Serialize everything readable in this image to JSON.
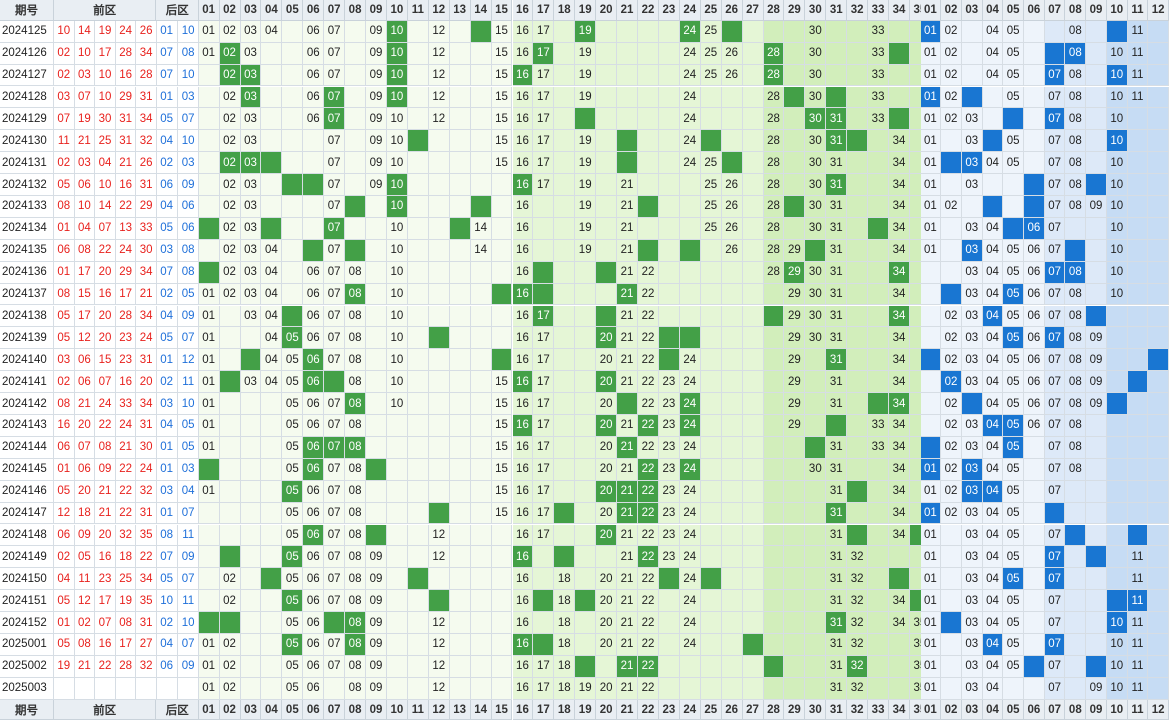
{
  "columns": {
    "period_label": "期号",
    "front_label": "前区",
    "back_label": "后区",
    "front_numbers": [
      "01",
      "02",
      "03",
      "04",
      "05",
      "06",
      "07",
      "08",
      "09",
      "10",
      "11",
      "12",
      "13",
      "14",
      "15",
      "16",
      "17",
      "18",
      "19",
      "20",
      "21",
      "22",
      "23",
      "24",
      "25",
      "26",
      "27",
      "28",
      "29",
      "30",
      "31",
      "32",
      "33",
      "34",
      "35"
    ],
    "back_numbers": [
      "01",
      "02",
      "03",
      "04",
      "05",
      "06",
      "07",
      "08",
      "09",
      "10",
      "11",
      "12"
    ]
  },
  "colors": {
    "front_hit": "#43a047",
    "back_hit": "#1976d2",
    "front_number_text": "#e8211d",
    "back_number_text": "#1e6fd9"
  },
  "rows": [
    {
      "period": "2024125",
      "front": [
        "10",
        "14",
        "19",
        "24",
        "26"
      ],
      "back": [
        "01",
        "10"
      ],
      "front_cells": [
        "01",
        "02",
        "03",
        "04",
        "06",
        "07",
        "09",
        "10",
        "12",
        "15",
        "16",
        "17",
        "19",
        "24",
        "25",
        "30",
        "33"
      ],
      "back_cells": [
        "01",
        "02",
        "04",
        "05",
        "08",
        "11"
      ]
    },
    {
      "period": "2024126",
      "front": [
        "02",
        "10",
        "17",
        "28",
        "34"
      ],
      "back": [
        "07",
        "08"
      ],
      "front_cells": [
        "01",
        "02",
        "03",
        "06",
        "07",
        "09",
        "10",
        "12",
        "15",
        "16",
        "17",
        "19",
        "24",
        "25",
        "26",
        "28",
        "30",
        "33"
      ],
      "back_cells": [
        "01",
        "02",
        "04",
        "05",
        "08",
        "10",
        "11"
      ]
    },
    {
      "period": "2024127",
      "front": [
        "02",
        "03",
        "10",
        "16",
        "28"
      ],
      "back": [
        "07",
        "10"
      ],
      "front_cells": [
        "02",
        "03",
        "06",
        "07",
        "09",
        "10",
        "12",
        "15",
        "16",
        "17",
        "19",
        "24",
        "25",
        "26",
        "28",
        "30",
        "33"
      ],
      "back_cells": [
        "01",
        "02",
        "04",
        "05",
        "07",
        "08",
        "10",
        "11"
      ]
    },
    {
      "period": "2024128",
      "front": [
        "03",
        "07",
        "10",
        "29",
        "31"
      ],
      "back": [
        "01",
        "03"
      ],
      "front_cells": [
        "02",
        "03",
        "06",
        "07",
        "09",
        "10",
        "12",
        "15",
        "16",
        "17",
        "19",
        "24",
        "28",
        "30",
        "33"
      ],
      "back_cells": [
        "01",
        "02",
        "05",
        "07",
        "08",
        "10",
        "11"
      ]
    },
    {
      "period": "2024129",
      "front": [
        "07",
        "19",
        "30",
        "31",
        "34"
      ],
      "back": [
        "05",
        "07"
      ],
      "front_cells": [
        "02",
        "03",
        "06",
        "07",
        "09",
        "10",
        "12",
        "15",
        "16",
        "17",
        "24",
        "28",
        "30",
        "31",
        "33"
      ],
      "back_cells": [
        "01",
        "02",
        "03",
        "07",
        "08",
        "10"
      ]
    },
    {
      "period": "2024130",
      "front": [
        "11",
        "21",
        "25",
        "31",
        "32"
      ],
      "back": [
        "04",
        "10"
      ],
      "front_cells": [
        "02",
        "03",
        "07",
        "09",
        "10",
        "15",
        "16",
        "17",
        "19",
        "24",
        "28",
        "30",
        "31",
        "34"
      ],
      "back_cells": [
        "01",
        "03",
        "05",
        "07",
        "08",
        "10"
      ]
    },
    {
      "period": "2024131",
      "front": [
        "02",
        "03",
        "04",
        "21",
        "26"
      ],
      "back": [
        "02",
        "03"
      ],
      "front_cells": [
        "02",
        "03",
        "07",
        "09",
        "10",
        "15",
        "16",
        "17",
        "19",
        "24",
        "25",
        "28",
        "30",
        "31",
        "34"
      ],
      "back_cells": [
        "01",
        "03",
        "04",
        "05",
        "07",
        "08",
        "10"
      ]
    },
    {
      "period": "2024132",
      "front": [
        "05",
        "06",
        "10",
        "16",
        "31"
      ],
      "back": [
        "06",
        "09"
      ],
      "front_cells": [
        "02",
        "03",
        "07",
        "09",
        "10",
        "16",
        "17",
        "19",
        "21",
        "25",
        "26",
        "28",
        "30",
        "31",
        "34"
      ],
      "back_cells": [
        "01",
        "03",
        "07",
        "08",
        "10"
      ]
    },
    {
      "period": "2024133",
      "front": [
        "08",
        "10",
        "14",
        "22",
        "29"
      ],
      "back": [
        "04",
        "06"
      ],
      "front_cells": [
        "02",
        "03",
        "07",
        "10",
        "16",
        "19",
        "21",
        "25",
        "26",
        "28",
        "30",
        "31",
        "34"
      ],
      "back_cells": [
        "01",
        "02",
        "07",
        "08",
        "09",
        "10"
      ]
    },
    {
      "period": "2024134",
      "front": [
        "01",
        "04",
        "07",
        "13",
        "33"
      ],
      "back": [
        "05",
        "06"
      ],
      "front_cells": [
        "02",
        "03",
        "07",
        "10",
        "14",
        "16",
        "19",
        "21",
        "25",
        "26",
        "28",
        "30",
        "31",
        "34"
      ],
      "back_cells": [
        "01",
        "03",
        "04",
        "06",
        "07",
        "10"
      ]
    },
    {
      "period": "2024135",
      "front": [
        "06",
        "08",
        "22",
        "24",
        "30"
      ],
      "back": [
        "03",
        "08"
      ],
      "front_cells": [
        "02",
        "03",
        "04",
        "07",
        "10",
        "14",
        "16",
        "19",
        "21",
        "26",
        "28",
        "29",
        "31",
        "34"
      ],
      "back_cells": [
        "01",
        "03",
        "04",
        "05",
        "06",
        "07",
        "10"
      ]
    },
    {
      "period": "2024136",
      "front": [
        "01",
        "17",
        "20",
        "29",
        "34"
      ],
      "back": [
        "07",
        "08"
      ],
      "front_cells": [
        "02",
        "03",
        "04",
        "06",
        "07",
        "08",
        "10",
        "16",
        "21",
        "22",
        "28",
        "29",
        "30",
        "31",
        "34"
      ],
      "back_cells": [
        "03",
        "04",
        "05",
        "06",
        "07",
        "08",
        "10"
      ]
    },
    {
      "period": "2024137",
      "front": [
        "08",
        "15",
        "16",
        "17",
        "21"
      ],
      "back": [
        "02",
        "05"
      ],
      "front_cells": [
        "01",
        "02",
        "03",
        "04",
        "06",
        "07",
        "08",
        "10",
        "16",
        "21",
        "22",
        "29",
        "30",
        "31",
        "34"
      ],
      "back_cells": [
        "03",
        "04",
        "05",
        "06",
        "07",
        "08",
        "10"
      ]
    },
    {
      "period": "2024138",
      "front": [
        "05",
        "17",
        "20",
        "28",
        "34"
      ],
      "back": [
        "04",
        "09"
      ],
      "front_cells": [
        "01",
        "03",
        "04",
        "06",
        "07",
        "08",
        "10",
        "16",
        "17",
        "21",
        "22",
        "29",
        "30",
        "31",
        "34"
      ],
      "back_cells": [
        "02",
        "03",
        "04",
        "05",
        "06",
        "07",
        "08"
      ]
    },
    {
      "period": "2024139",
      "front": [
        "05",
        "12",
        "20",
        "23",
        "24"
      ],
      "back": [
        "05",
        "07"
      ],
      "front_cells": [
        "01",
        "04",
        "05",
        "06",
        "07",
        "08",
        "10",
        "16",
        "17",
        "20",
        "21",
        "22",
        "29",
        "30",
        "31",
        "34"
      ],
      "back_cells": [
        "02",
        "03",
        "04",
        "05",
        "06",
        "07",
        "08",
        "09"
      ]
    },
    {
      "period": "2024140",
      "front": [
        "03",
        "06",
        "15",
        "23",
        "31"
      ],
      "back": [
        "01",
        "12"
      ],
      "front_cells": [
        "01",
        "04",
        "05",
        "06",
        "07",
        "08",
        "10",
        "16",
        "17",
        "20",
        "21",
        "22",
        "24",
        "29",
        "31",
        "34"
      ],
      "back_cells": [
        "02",
        "03",
        "04",
        "05",
        "06",
        "07",
        "08",
        "09"
      ]
    },
    {
      "period": "2024141",
      "front": [
        "02",
        "06",
        "07",
        "16",
        "20"
      ],
      "back": [
        "02",
        "11"
      ],
      "front_cells": [
        "01",
        "03",
        "04",
        "05",
        "06",
        "08",
        "10",
        "15",
        "16",
        "17",
        "20",
        "21",
        "22",
        "23",
        "24",
        "29",
        "31",
        "34"
      ],
      "back_cells": [
        "02",
        "03",
        "04",
        "05",
        "06",
        "07",
        "08",
        "09"
      ]
    },
    {
      "period": "2024142",
      "front": [
        "08",
        "21",
        "24",
        "33",
        "34"
      ],
      "back": [
        "03",
        "10"
      ],
      "front_cells": [
        "01",
        "05",
        "06",
        "07",
        "08",
        "10",
        "15",
        "16",
        "17",
        "20",
        "22",
        "23",
        "24",
        "29",
        "31",
        "34"
      ],
      "back_cells": [
        "02",
        "04",
        "05",
        "06",
        "07",
        "08",
        "09"
      ]
    },
    {
      "period": "2024143",
      "front": [
        "16",
        "20",
        "22",
        "24",
        "31"
      ],
      "back": [
        "04",
        "05"
      ],
      "front_cells": [
        "01",
        "05",
        "06",
        "07",
        "08",
        "15",
        "16",
        "17",
        "20",
        "21",
        "22",
        "23",
        "24",
        "29",
        "33",
        "34"
      ],
      "back_cells": [
        "02",
        "03",
        "04",
        "05",
        "06",
        "07",
        "08"
      ]
    },
    {
      "period": "2024144",
      "front": [
        "06",
        "07",
        "08",
        "21",
        "30"
      ],
      "back": [
        "01",
        "05"
      ],
      "front_cells": [
        "01",
        "05",
        "06",
        "07",
        "08",
        "15",
        "16",
        "17",
        "20",
        "21",
        "22",
        "23",
        "24",
        "31",
        "33",
        "34"
      ],
      "back_cells": [
        "02",
        "03",
        "04",
        "05",
        "07",
        "08"
      ]
    },
    {
      "period": "2024145",
      "front": [
        "01",
        "06",
        "09",
        "22",
        "24"
      ],
      "back": [
        "01",
        "03"
      ],
      "front_cells": [
        "05",
        "06",
        "07",
        "08",
        "15",
        "16",
        "17",
        "20",
        "21",
        "22",
        "23",
        "24",
        "30",
        "31",
        "34"
      ],
      "back_cells": [
        "01",
        "02",
        "03",
        "04",
        "05",
        "07",
        "08"
      ]
    },
    {
      "period": "2024146",
      "front": [
        "05",
        "20",
        "21",
        "22",
        "32"
      ],
      "back": [
        "03",
        "04"
      ],
      "front_cells": [
        "01",
        "05",
        "06",
        "07",
        "08",
        "15",
        "16",
        "17",
        "20",
        "21",
        "22",
        "23",
        "24",
        "31",
        "34"
      ],
      "back_cells": [
        "01",
        "02",
        "03",
        "04",
        "05",
        "07"
      ]
    },
    {
      "period": "2024147",
      "front": [
        "12",
        "18",
        "21",
        "22",
        "31"
      ],
      "back": [
        "01",
        "07"
      ],
      "front_cells": [
        "05",
        "06",
        "07",
        "08",
        "15",
        "16",
        "17",
        "20",
        "21",
        "22",
        "23",
        "24",
        "31",
        "34"
      ],
      "back_cells": [
        "01",
        "02",
        "03",
        "04",
        "05"
      ]
    },
    {
      "period": "2024148",
      "front": [
        "06",
        "09",
        "20",
        "32",
        "35"
      ],
      "back": [
        "08",
        "11"
      ],
      "front_cells": [
        "05",
        "06",
        "07",
        "08",
        "12",
        "16",
        "17",
        "20",
        "21",
        "22",
        "23",
        "24",
        "31",
        "34"
      ],
      "back_cells": [
        "01",
        "03",
        "04",
        "05",
        "07"
      ]
    },
    {
      "period": "2024149",
      "front": [
        "02",
        "05",
        "16",
        "18",
        "22"
      ],
      "back": [
        "07",
        "09"
      ],
      "front_cells": [
        "05",
        "06",
        "07",
        "08",
        "09",
        "12",
        "16",
        "21",
        "22",
        "23",
        "24",
        "31",
        "32"
      ],
      "back_cells": [
        "01",
        "03",
        "04",
        "05",
        "07",
        "11"
      ]
    },
    {
      "period": "2024150",
      "front": [
        "04",
        "11",
        "23",
        "25",
        "34"
      ],
      "back": [
        "05",
        "07"
      ],
      "front_cells": [
        "02",
        "05",
        "06",
        "07",
        "08",
        "09",
        "16",
        "18",
        "20",
        "21",
        "22",
        "24",
        "31",
        "32"
      ],
      "back_cells": [
        "01",
        "03",
        "04",
        "05",
        "07",
        "11"
      ]
    },
    {
      "period": "2024151",
      "front": [
        "05",
        "12",
        "17",
        "19",
        "35"
      ],
      "back": [
        "10",
        "11"
      ],
      "front_cells": [
        "02",
        "05",
        "06",
        "07",
        "08",
        "09",
        "16",
        "18",
        "20",
        "21",
        "22",
        "24",
        "31",
        "32",
        "34"
      ],
      "back_cells": [
        "01",
        "03",
        "04",
        "05",
        "07",
        "11"
      ]
    },
    {
      "period": "2024152",
      "front": [
        "01",
        "02",
        "07",
        "08",
        "31"
      ],
      "back": [
        "02",
        "10"
      ],
      "front_cells": [
        "05",
        "06",
        "08",
        "09",
        "12",
        "16",
        "18",
        "20",
        "21",
        "22",
        "24",
        "31",
        "32",
        "34",
        "35"
      ],
      "back_cells": [
        "01",
        "03",
        "04",
        "05",
        "07",
        "10",
        "11"
      ]
    },
    {
      "period": "2025001",
      "front": [
        "05",
        "08",
        "16",
        "17",
        "27"
      ],
      "back": [
        "04",
        "07"
      ],
      "front_cells": [
        "01",
        "02",
        "05",
        "06",
        "07",
        "08",
        "09",
        "12",
        "16",
        "18",
        "20",
        "21",
        "22",
        "24",
        "31",
        "32",
        "35"
      ],
      "back_cells": [
        "01",
        "03",
        "04",
        "05",
        "07",
        "10",
        "11"
      ]
    },
    {
      "period": "2025002",
      "front": [
        "19",
        "21",
        "22",
        "28",
        "32"
      ],
      "back": [
        "06",
        "09"
      ],
      "front_cells": [
        "01",
        "02",
        "05",
        "06",
        "07",
        "08",
        "09",
        "12",
        "16",
        "17",
        "18",
        "21",
        "22",
        "31",
        "32",
        "35"
      ],
      "back_cells": [
        "01",
        "03",
        "04",
        "05",
        "07",
        "10",
        "11"
      ]
    },
    {
      "period": "2025003",
      "front": [],
      "back": [],
      "front_cells": [
        "01",
        "02",
        "05",
        "06",
        "08",
        "09",
        "12",
        "16",
        "17",
        "18",
        "19",
        "20",
        "21",
        "22",
        "31",
        "32",
        "35"
      ],
      "back_cells": [
        "01",
        "03",
        "04",
        "07",
        "09",
        "10",
        "11"
      ]
    }
  ]
}
